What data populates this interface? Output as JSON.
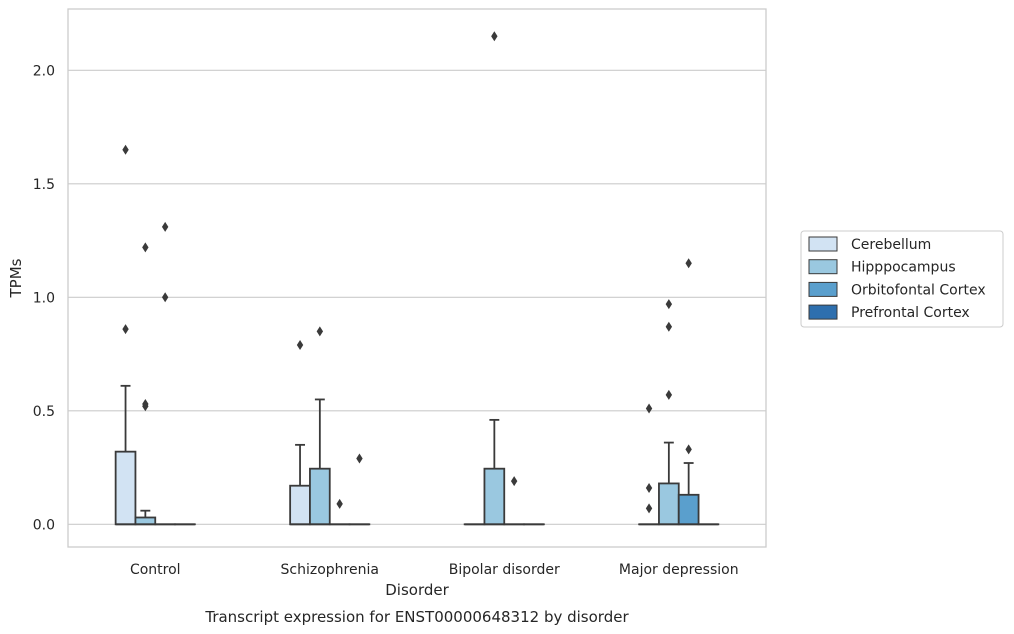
{
  "caption": "Transcript expression for ENST00000648312 by disorder",
  "chart_data": {
    "type": "box",
    "xlabel": "Disorder",
    "ylabel": "TPMs",
    "categories": [
      "Control",
      "Schizophrenia",
      "Bipolar disorder",
      "Major depression"
    ],
    "ylim": [
      -0.1,
      2.27
    ],
    "yticks": [
      0.0,
      0.5,
      1.0,
      1.5,
      2.0
    ],
    "ytick_labels": [
      "0.0",
      "0.5",
      "1.0",
      "1.5",
      "2.0"
    ],
    "grid": "horizontal",
    "legend_position": "right",
    "series": [
      {
        "name": "Cerebellum",
        "color": "#d2e3f3",
        "boxes": [
          {
            "min": 0.0,
            "q1": 0.0,
            "median": 0.0,
            "q3": 0.32,
            "max": 0.61,
            "outliers": [
              0.86,
              1.65
            ]
          },
          {
            "min": 0.0,
            "q1": 0.0,
            "median": 0.0,
            "q3": 0.17,
            "max": 0.35,
            "outliers": [
              0.79
            ]
          },
          {
            "min": 0.0,
            "q1": 0.0,
            "median": 0.0,
            "q3": 0.0,
            "max": 0.0,
            "outliers": []
          },
          {
            "min": 0.0,
            "q1": 0.0,
            "median": 0.0,
            "q3": 0.0,
            "max": 0.0,
            "outliers": [
              0.07,
              0.16,
              0.51
            ]
          }
        ]
      },
      {
        "name": "Hipppocampus",
        "color": "#9ac8e0",
        "boxes": [
          {
            "min": 0.0,
            "q1": 0.0,
            "median": 0.0,
            "q3": 0.03,
            "max": 0.06,
            "outliers": [
              0.52,
              0.53,
              1.22
            ]
          },
          {
            "min": 0.0,
            "q1": 0.0,
            "median": 0.0,
            "q3": 0.245,
            "max": 0.55,
            "outliers": [
              0.85
            ]
          },
          {
            "min": 0.0,
            "q1": 0.0,
            "median": 0.0,
            "q3": 0.245,
            "max": 0.46,
            "outliers": [
              2.15
            ]
          },
          {
            "min": 0.0,
            "q1": 0.0,
            "median": 0.0,
            "q3": 0.18,
            "max": 0.36,
            "outliers": [
              0.57,
              0.87,
              0.97
            ]
          }
        ]
      },
      {
        "name": "Orbitofontal Cortex",
        "color": "#5a9fcd",
        "boxes": [
          {
            "min": 0.0,
            "q1": 0.0,
            "median": 0.0,
            "q3": 0.0,
            "max": 0.0,
            "outliers": [
              1.0,
              1.31
            ]
          },
          {
            "min": 0.0,
            "q1": 0.0,
            "median": 0.0,
            "q3": 0.0,
            "max": 0.0,
            "outliers": [
              0.09
            ]
          },
          {
            "min": 0.0,
            "q1": 0.0,
            "median": 0.0,
            "q3": 0.0,
            "max": 0.0,
            "outliers": [
              0.19
            ]
          },
          {
            "min": 0.0,
            "q1": 0.0,
            "median": 0.0,
            "q3": 0.13,
            "max": 0.27,
            "outliers": [
              0.33,
              1.15
            ]
          }
        ]
      },
      {
        "name": "Prefrontal Cortex",
        "color": "#2e6fae",
        "boxes": [
          {
            "min": 0.0,
            "q1": 0.0,
            "median": 0.0,
            "q3": 0.0,
            "max": 0.0,
            "outliers": []
          },
          {
            "min": 0.0,
            "q1": 0.0,
            "median": 0.0,
            "q3": 0.0,
            "max": 0.0,
            "outliers": [
              0.29
            ]
          },
          {
            "min": 0.0,
            "q1": 0.0,
            "median": 0.0,
            "q3": 0.0,
            "max": 0.0,
            "outliers": []
          },
          {
            "min": 0.0,
            "q1": 0.0,
            "median": 0.0,
            "q3": 0.0,
            "max": 0.0,
            "outliers": []
          }
        ]
      }
    ]
  }
}
